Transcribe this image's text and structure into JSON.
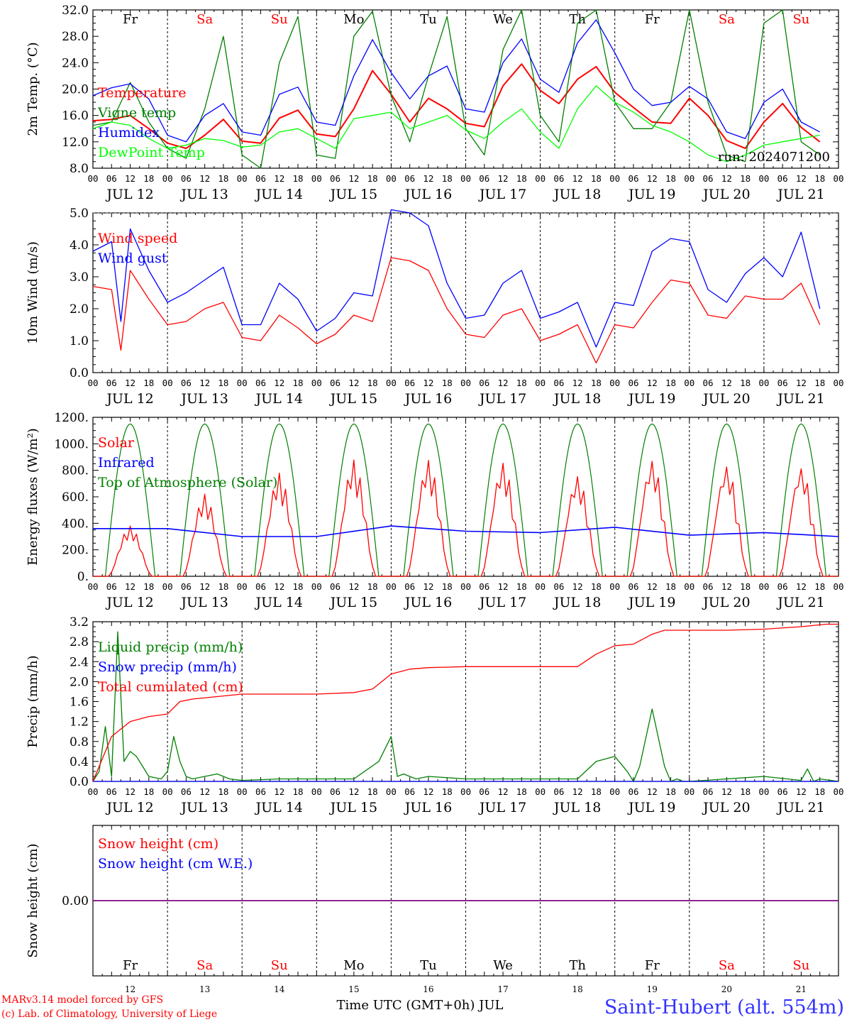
{
  "chart_data": [
    {
      "type": "line",
      "ylabel": "2m Temp. (°C)",
      "ylim": [
        8.0,
        32.0
      ],
      "yticks": [
        "8.0",
        "12.0",
        "16.0",
        "20.0",
        "24.0",
        "28.0",
        "32.0"
      ],
      "grid": "dashed daily verticals",
      "legend_placement": "left",
      "note": "run: 2024071200",
      "series": [
        {
          "name": "Temperature",
          "color": "#ff0000",
          "x": [
            0,
            6,
            12,
            18,
            24,
            30,
            36,
            42,
            48,
            54,
            60,
            66,
            72,
            78,
            84,
            90,
            96,
            102,
            108,
            114,
            120,
            126,
            132,
            138,
            144,
            150,
            156,
            162,
            168,
            174,
            180,
            186,
            192,
            198,
            204,
            210,
            216,
            222,
            228,
            234
          ],
          "y": [
            15.2,
            15.4,
            16.0,
            14.0,
            11.8,
            11.0,
            13.0,
            15.4,
            12.1,
            11.8,
            15.6,
            16.8,
            13.2,
            12.8,
            17.0,
            22.8,
            19.2,
            15.0,
            18.6,
            17.0,
            14.8,
            14.3,
            20.5,
            23.8,
            19.8,
            17.8,
            21.5,
            23.4,
            19.5,
            17.2,
            15.0,
            14.8,
            18.6,
            16.0,
            12.2,
            11.0,
            15.0,
            17.8,
            14.2,
            12.0
          ]
        },
        {
          "name": "Vigne temp",
          "color": "#008000",
          "x": [
            0,
            6,
            12,
            18,
            24,
            30,
            36,
            42,
            48,
            54,
            60,
            66,
            72,
            78,
            84,
            90,
            96,
            102,
            108,
            114,
            120,
            126,
            132,
            138,
            144,
            150,
            156,
            162,
            168,
            174,
            180,
            186,
            192,
            198,
            204,
            210,
            216,
            222,
            228,
            234
          ],
          "y": [
            14.5,
            15.0,
            21.0,
            15.0,
            11.0,
            9.5,
            17.0,
            28.0,
            10.0,
            8.0,
            24.0,
            31.0,
            10.0,
            9.5,
            28.0,
            31.8,
            19.0,
            12.0,
            22.0,
            31.0,
            14.0,
            10.0,
            26.0,
            32.0,
            16.0,
            12.0,
            30.0,
            32.0,
            18.0,
            14.0,
            14.0,
            18.0,
            32.0,
            18.0,
            10.0,
            9.0,
            30.0,
            32.0,
            12.0,
            10.0
          ]
        },
        {
          "name": "Humidex",
          "color": "#0000ff",
          "x": [
            0,
            6,
            12,
            18,
            24,
            30,
            36,
            42,
            48,
            54,
            60,
            66,
            72,
            78,
            84,
            90,
            96,
            102,
            108,
            114,
            120,
            126,
            132,
            138,
            144,
            150,
            156,
            162,
            168,
            174,
            180,
            186,
            192,
            198,
            204,
            210,
            216,
            222,
            228,
            234
          ],
          "y": [
            19.0,
            20.2,
            20.8,
            18.5,
            13.0,
            12.0,
            16.0,
            17.8,
            13.5,
            13.0,
            19.2,
            20.3,
            15.0,
            14.5,
            22.0,
            27.5,
            22.5,
            18.5,
            22.0,
            23.5,
            17.0,
            16.5,
            24.0,
            27.6,
            21.5,
            19.5,
            27.0,
            30.5,
            25.5,
            20.0,
            17.5,
            18.0,
            20.4,
            18.5,
            13.5,
            12.5,
            18.0,
            20.0,
            15.0,
            13.5
          ]
        },
        {
          "name": "DewPoint Temp",
          "color": "#00ff00",
          "x": [
            0,
            6,
            12,
            18,
            24,
            30,
            36,
            42,
            48,
            54,
            60,
            66,
            72,
            78,
            84,
            90,
            96,
            102,
            108,
            114,
            120,
            126,
            132,
            138,
            144,
            150,
            156,
            162,
            168,
            174,
            180,
            186,
            192,
            198,
            204,
            210,
            216,
            222,
            228,
            234
          ],
          "y": [
            14.0,
            15.0,
            14.5,
            12.5,
            11.0,
            11.5,
            12.5,
            12.2,
            11.2,
            11.5,
            13.5,
            14.0,
            12.5,
            11.0,
            15.5,
            16.0,
            16.5,
            14.0,
            15.0,
            16.0,
            13.8,
            12.5,
            15.0,
            17.0,
            13.5,
            11.0,
            17.0,
            20.5,
            18.0,
            16.5,
            14.5,
            13.5,
            12.0,
            10.0,
            9.0,
            10.0,
            11.5,
            12.0,
            12.5,
            13.0
          ]
        }
      ]
    },
    {
      "type": "line",
      "ylabel": "10m Wind (m/s)",
      "ylim": [
        0.0,
        5.0
      ],
      "yticks": [
        "0.0",
        "1.0",
        "2.0",
        "3.0",
        "4.0",
        "5.0"
      ],
      "series": [
        {
          "name": "Wind speed",
          "color": "#ff0000",
          "x": [
            0,
            6,
            9,
            12,
            18,
            24,
            30,
            36,
            42,
            48,
            54,
            60,
            66,
            72,
            78,
            84,
            90,
            96,
            102,
            108,
            114,
            120,
            126,
            132,
            138,
            144,
            150,
            156,
            162,
            168,
            174,
            180,
            186,
            192,
            198,
            204,
            210,
            216,
            222,
            228,
            234
          ],
          "y": [
            2.7,
            2.6,
            0.7,
            3.2,
            2.3,
            1.5,
            1.6,
            2.0,
            2.2,
            1.1,
            1.0,
            1.8,
            1.4,
            0.9,
            1.2,
            1.8,
            1.6,
            3.6,
            3.5,
            3.2,
            2.0,
            1.2,
            1.1,
            1.8,
            2.0,
            1.0,
            1.2,
            1.5,
            0.3,
            1.5,
            1.4,
            2.2,
            2.9,
            2.8,
            1.8,
            1.7,
            2.4,
            2.3,
            2.3,
            2.8,
            1.5
          ]
        },
        {
          "name": "Wind gust",
          "color": "#0000ff",
          "x": [
            0,
            6,
            9,
            12,
            18,
            24,
            30,
            36,
            42,
            48,
            54,
            60,
            66,
            72,
            78,
            84,
            90,
            96,
            102,
            108,
            114,
            120,
            126,
            132,
            138,
            144,
            150,
            156,
            162,
            168,
            174,
            180,
            186,
            192,
            198,
            204,
            210,
            216,
            222,
            228,
            234
          ],
          "y": [
            3.8,
            4.1,
            1.6,
            4.5,
            3.2,
            2.2,
            2.5,
            2.9,
            3.3,
            1.5,
            1.5,
            2.8,
            2.3,
            1.3,
            1.7,
            2.5,
            2.4,
            5.1,
            5.0,
            4.6,
            2.8,
            1.7,
            1.8,
            2.8,
            3.2,
            1.7,
            1.9,
            2.2,
            0.8,
            2.2,
            2.1,
            3.8,
            4.2,
            4.1,
            2.6,
            2.2,
            3.1,
            3.6,
            3.0,
            4.4,
            2.0
          ]
        }
      ]
    },
    {
      "type": "line",
      "ylabel": "Energy fluxes (W/m²)",
      "ylim": [
        0,
        1200
      ],
      "yticks": [
        "0.",
        "200.",
        "400.",
        "600.",
        "800.",
        "1000.",
        "1200."
      ],
      "series": [
        {
          "name": "Solar",
          "color": "#ff0000",
          "daily_peaks": [
            380,
            620,
            780,
            880,
            880,
            860,
            760,
            880,
            840,
            830
          ],
          "daily_peak_hour_offset": [
            12,
            12,
            12,
            12,
            12,
            12,
            12,
            12,
            12,
            12
          ]
        },
        {
          "name": "Infrared",
          "color": "#0000ff",
          "x": [
            0,
            24,
            48,
            72,
            96,
            120,
            144,
            168,
            192,
            216,
            240
          ],
          "y": [
            360,
            360,
            300,
            300,
            380,
            340,
            330,
            370,
            310,
            330,
            300
          ]
        },
        {
          "name": "Top of Atmosphere (Solar)",
          "color": "#008000",
          "daily_peak": 1150,
          "sunrise_offset_h": 4,
          "sunset_offset_h": 20
        }
      ]
    },
    {
      "type": "line",
      "ylabel": "Precip (mm/h)",
      "ylim": [
        0.0,
        3.2
      ],
      "yticks": [
        "0.0",
        "0.4",
        "0.8",
        "1.2",
        "1.6",
        "2.0",
        "2.4",
        "2.8",
        "3.2"
      ],
      "series": [
        {
          "name": "Liquid precip (mm/h)",
          "color": "#008000",
          "x": [
            0,
            2,
            4,
            6,
            8,
            10,
            12,
            14,
            16,
            18,
            22,
            24,
            26,
            28,
            30,
            32,
            36,
            40,
            44,
            48,
            60,
            72,
            84,
            92,
            96,
            98,
            100,
            104,
            108,
            120,
            156,
            162,
            168,
            172,
            174,
            176,
            180,
            184,
            186,
            188,
            190,
            192,
            216,
            228,
            230,
            232,
            234,
            240
          ],
          "y": [
            0,
            0.2,
            1.1,
            0.1,
            3.0,
            0.4,
            0.6,
            0.5,
            0.3,
            0.1,
            0.05,
            0.2,
            0.9,
            0.4,
            0.1,
            0.05,
            0.1,
            0.15,
            0.05,
            0.02,
            0.05,
            0.05,
            0.05,
            0.4,
            0.9,
            0.1,
            0.15,
            0.05,
            0.1,
            0.05,
            0.05,
            0.4,
            0.5,
            0.2,
            0.0,
            0.3,
            1.45,
            0.3,
            0.0,
            0.05,
            0.0,
            0.0,
            0.1,
            0.02,
            0.25,
            0.0,
            0.05,
            0.0
          ]
        },
        {
          "name": "Snow precip (mm/h)",
          "color": "#0000ff",
          "x": [
            0,
            240
          ],
          "y": [
            0,
            0
          ]
        },
        {
          "name": "Total cumulated (cm)",
          "color": "#ff0000",
          "x": [
            0,
            6,
            12,
            18,
            24,
            28,
            32,
            40,
            48,
            60,
            72,
            84,
            90,
            96,
            102,
            108,
            120,
            132,
            144,
            156,
            162,
            168,
            174,
            180,
            184,
            192,
            204,
            216,
            228,
            236,
            240
          ],
          "y": [
            0.0,
            0.9,
            1.2,
            1.3,
            1.35,
            1.6,
            1.65,
            1.7,
            1.75,
            1.75,
            1.75,
            1.78,
            1.85,
            2.15,
            2.25,
            2.28,
            2.3,
            2.3,
            2.3,
            2.3,
            2.55,
            2.72,
            2.75,
            2.95,
            3.03,
            3.03,
            3.03,
            3.05,
            3.1,
            3.15,
            3.15
          ]
        }
      ]
    },
    {
      "type": "line",
      "ylabel": "Snow height (cm)",
      "yticks": [
        "0.00"
      ],
      "series": [
        {
          "name": "Snow height (cm)",
          "color": "#ff0000",
          "x": [
            0,
            240
          ],
          "y": [
            0,
            0
          ]
        },
        {
          "name": "Snow height (cm W.E.)",
          "color": "#0000ff",
          "x": [
            0,
            240
          ],
          "y": [
            0,
            0
          ]
        }
      ]
    }
  ],
  "days": {
    "weekday_labels": [
      "Fr",
      "Sa",
      "Su",
      "Mo",
      "Tu",
      "We",
      "Th",
      "Fr",
      "Sa",
      "Su"
    ],
    "weekend": [
      false,
      true,
      true,
      false,
      false,
      false,
      false,
      false,
      true,
      true
    ],
    "date_labels": [
      "JUL 12",
      "JUL 13",
      "JUL 14",
      "JUL 15",
      "JUL 16",
      "JUL 17",
      "JUL 18",
      "JUL 19",
      "JUL 20",
      "JUL 21"
    ],
    "hour_labels": [
      "00",
      "06",
      "12",
      "18"
    ],
    "final_hour_label": "00",
    "bottom_day_numbers": [
      "12",
      "13",
      "14",
      "15",
      "16",
      "17",
      "18",
      "19",
      "20",
      "21"
    ]
  },
  "footer": {
    "credit_line_1": "MARv3.14 model forced by GFS",
    "credit_line_2": "(c) Lab. of Climatology, University of Liege",
    "xlabel": "Time UTC (GMT+0h) JUL",
    "station": "Saint-Hubert (alt. 554m)"
  },
  "colors": {
    "red": "#ff0000",
    "green": "#008000",
    "blue": "#0000ff",
    "light_green": "#00ff00",
    "purple": "#800080",
    "black": "#000000"
  }
}
